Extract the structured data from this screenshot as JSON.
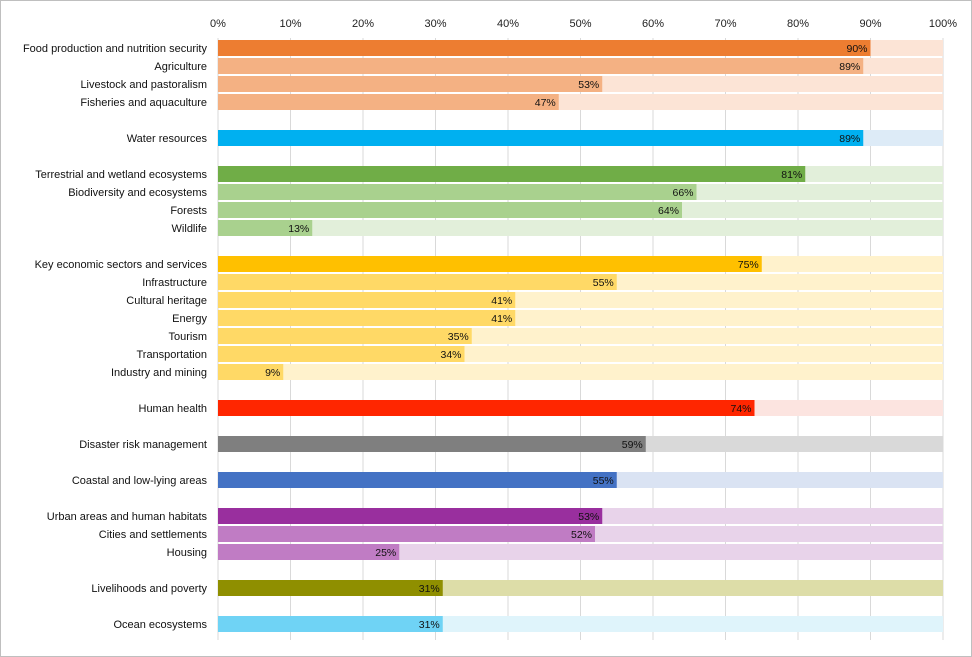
{
  "chart_data": {
    "type": "bar",
    "orientation": "horizontal",
    "stacked_background": true,
    "xlim": [
      0,
      100
    ],
    "x_ticks": [
      "0%",
      "10%",
      "20%",
      "30%",
      "40%",
      "50%",
      "60%",
      "70%",
      "80%",
      "90%",
      "100%"
    ],
    "grid": true,
    "value_suffix": "%",
    "groups": [
      {
        "color": "#ED7D31",
        "light": "#F4B183",
        "bg": "#FCE4D6",
        "items": [
          {
            "label": "Food production and nutrition security",
            "value": 90
          },
          {
            "label": "Agriculture",
            "value": 89
          },
          {
            "label": "Livestock and pastoralism",
            "value": 53
          },
          {
            "label": "Fisheries and aquaculture",
            "value": 47
          }
        ]
      },
      {
        "color": "#00B0F0",
        "light": "#00B0F0",
        "bg": "#DDEBF7",
        "items": [
          {
            "label": "Water resources",
            "value": 89
          }
        ]
      },
      {
        "color": "#70AD47",
        "light": "#A9D18E",
        "bg": "#E2EFDA",
        "items": [
          {
            "label": "Terrestrial and wetland ecosystems",
            "value": 81
          },
          {
            "label": "Biodiversity and ecosystems",
            "value": 66
          },
          {
            "label": "Forests",
            "value": 64
          },
          {
            "label": "Wildlife",
            "value": 13
          }
        ]
      },
      {
        "color": "#FFC000",
        "light": "#FFD966",
        "bg": "#FFF2CC",
        "items": [
          {
            "label": "Key economic sectors and services",
            "value": 75
          },
          {
            "label": "Infrastructure",
            "value": 55
          },
          {
            "label": "Cultural heritage",
            "value": 41
          },
          {
            "label": "Energy",
            "value": 41
          },
          {
            "label": "Tourism",
            "value": 35
          },
          {
            "label": "Transportation",
            "value": 34
          },
          {
            "label": "Industry and mining",
            "value": 9
          }
        ]
      },
      {
        "color": "#FF2600",
        "light": "#FF2600",
        "bg": "#FCE4E0",
        "items": [
          {
            "label": "Human health",
            "value": 74
          }
        ]
      },
      {
        "color": "#7F7F7F",
        "light": "#7F7F7F",
        "bg": "#D9D9D9",
        "items": [
          {
            "label": "Disaster risk management",
            "value": 59
          }
        ]
      },
      {
        "color": "#4472C4",
        "light": "#4472C4",
        "bg": "#DAE3F3",
        "items": [
          {
            "label": "Coastal and low-lying areas",
            "value": 55
          }
        ]
      },
      {
        "color": "#992F9E",
        "light": "#C07CC4",
        "bg": "#E8D3EA",
        "items": [
          {
            "label": "Urban areas and human habitats",
            "value": 53
          },
          {
            "label": "Cities and settlements",
            "value": 52
          },
          {
            "label": "Housing",
            "value": 25
          }
        ]
      },
      {
        "color": "#8F8F00",
        "light": "#8F8F00",
        "bg": "#DDDDA8",
        "items": [
          {
            "label": "Livelihoods and poverty",
            "value": 31
          }
        ]
      },
      {
        "color": "#6FD3F5",
        "light": "#6FD3F5",
        "bg": "#DFF4FB",
        "items": [
          {
            "label": "Ocean ecosystems",
            "value": 31
          }
        ]
      }
    ]
  }
}
